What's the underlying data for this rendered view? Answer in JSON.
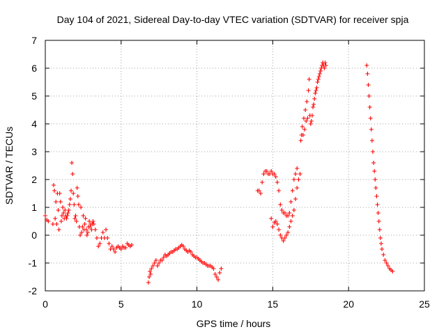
{
  "chart_data": {
    "type": "scatter",
    "title": "Day 104 of 2021, Sidereal Day-to-day VTEC variation (SDTVAR) for receiver spja",
    "xlabel": "GPS time / hours",
    "ylabel": "SDTVAR / TECUs",
    "xlim": [
      0,
      25
    ],
    "ylim": [
      -2,
      7
    ],
    "x_ticks": [
      0,
      5,
      10,
      15,
      20,
      25
    ],
    "y_ticks": [
      -2,
      -1,
      0,
      1,
      2,
      3,
      4,
      5,
      6,
      7
    ],
    "grid": true,
    "marker": "plus",
    "series": [
      {
        "name": "SDTVAR",
        "color": "#ff0000",
        "x": [
          0.0,
          0.1,
          0.2,
          0.5,
          0.55,
          0.6,
          0.65,
          0.7,
          0.75,
          0.8,
          0.85,
          0.9,
          0.95,
          1.0,
          1.05,
          1.1,
          1.15,
          1.2,
          1.25,
          1.3,
          1.35,
          1.4,
          1.45,
          1.5,
          1.55,
          1.6,
          1.65,
          1.7,
          1.75,
          1.8,
          1.85,
          1.9,
          1.95,
          2.0,
          2.05,
          2.1,
          2.15,
          2.2,
          2.25,
          2.3,
          2.35,
          2.4,
          2.45,
          2.5,
          2.55,
          2.6,
          2.65,
          2.7,
          2.75,
          2.8,
          2.85,
          2.9,
          2.95,
          3.0,
          3.05,
          3.1,
          3.15,
          3.2,
          3.3,
          3.4,
          3.5,
          3.6,
          3.7,
          3.8,
          3.9,
          4.0,
          4.1,
          4.2,
          4.3,
          4.4,
          4.5,
          4.6,
          4.7,
          4.8,
          4.9,
          5.0,
          5.1,
          5.2,
          5.3,
          5.4,
          5.5,
          5.6,
          5.7,
          6.8,
          6.85,
          6.9,
          6.95,
          7.0,
          7.1,
          7.2,
          7.3,
          7.4,
          7.5,
          7.6,
          7.7,
          7.8,
          7.9,
          8.0,
          8.1,
          8.2,
          8.3,
          8.4,
          8.5,
          8.6,
          8.7,
          8.8,
          8.9,
          9.0,
          9.1,
          9.2,
          9.3,
          9.4,
          9.5,
          9.6,
          9.7,
          9.8,
          9.9,
          10.0,
          10.1,
          10.2,
          10.3,
          10.4,
          10.5,
          10.6,
          10.7,
          10.8,
          10.9,
          11.0,
          11.1,
          11.2,
          11.3,
          11.4,
          11.5,
          11.6,
          14.0,
          14.1,
          14.2,
          14.3,
          14.4,
          14.5,
          14.6,
          14.7,
          14.8,
          14.9,
          15.0,
          15.1,
          15.2,
          15.3,
          15.4,
          15.5,
          15.6,
          15.7,
          15.8,
          15.9,
          16.0,
          16.1,
          16.2,
          16.3,
          16.4,
          16.5,
          16.6,
          14.9,
          15.0,
          15.1,
          15.2,
          15.3,
          15.4,
          15.5,
          15.6,
          15.7,
          15.8,
          15.9,
          16.0,
          16.1,
          16.2,
          16.3,
          16.4,
          16.5,
          16.6,
          16.7,
          16.8,
          16.85,
          16.9,
          16.95,
          17.0,
          17.05,
          17.1,
          17.15,
          17.2,
          17.25,
          17.3,
          17.35,
          17.4,
          17.45,
          17.5,
          17.55,
          17.6,
          17.65,
          17.7,
          17.75,
          17.8,
          17.85,
          17.9,
          17.95,
          18.0,
          18.05,
          18.1,
          18.15,
          18.2,
          18.25,
          18.3,
          18.35,
          18.4,
          18.45,
          18.5,
          21.2,
          21.25,
          21.3,
          21.35,
          21.4,
          21.45,
          21.5,
          21.55,
          21.6,
          21.65,
          21.7,
          21.75,
          21.8,
          21.85,
          21.9,
          21.95,
          22.0,
          22.05,
          22.1,
          22.15,
          22.2,
          22.3,
          22.4,
          22.5,
          22.6,
          22.7,
          22.8,
          22.9
        ],
        "y": [
          0.7,
          0.55,
          0.5,
          0.4,
          1.8,
          1.6,
          0.6,
          1.2,
          0.4,
          1.5,
          0.9,
          0.2,
          1.5,
          1.2,
          0.5,
          0.7,
          1.0,
          0.8,
          0.6,
          0.9,
          0.7,
          0.6,
          0.7,
          0.8,
          0.9,
          1.1,
          1.3,
          1.6,
          2.6,
          2.2,
          1.5,
          1.1,
          0.6,
          0.7,
          0.5,
          1.7,
          1.4,
          1.1,
          0.3,
          0.0,
          1.0,
          0.1,
          0.3,
          0.7,
          0.2,
          0.4,
          0.6,
          0.2,
          0.0,
          0.1,
          0.3,
          0.5,
          0.3,
          0.4,
          0.2,
          0.4,
          0.5,
          0.4,
          0.2,
          -0.1,
          -0.4,
          -0.3,
          -0.1,
          0.1,
          -0.1,
          0.2,
          -0.1,
          -0.3,
          -0.5,
          -0.4,
          -0.5,
          -0.6,
          -0.45,
          -0.4,
          -0.45,
          -0.5,
          -0.4,
          -0.45,
          -0.45,
          -0.3,
          -0.35,
          -0.4,
          -0.35,
          -1.7,
          -1.5,
          -1.3,
          -1.4,
          -1.2,
          -1.1,
          -1.0,
          -0.9,
          -1.1,
          -1.0,
          -0.9,
          -0.9,
          -0.8,
          -0.7,
          -0.75,
          -0.7,
          -0.65,
          -0.6,
          -0.6,
          -0.55,
          -0.5,
          -0.5,
          -0.45,
          -0.4,
          -0.35,
          -0.4,
          -0.5,
          -0.55,
          -0.6,
          -0.55,
          -0.6,
          -0.7,
          -0.75,
          -0.8,
          -0.8,
          -0.85,
          -0.9,
          -0.95,
          -1.0,
          -1.0,
          -1.05,
          -1.1,
          -1.1,
          -1.1,
          -1.15,
          -1.2,
          -1.4,
          -1.5,
          -1.6,
          -1.35,
          -1.2,
          1.6,
          1.6,
          1.5,
          1.9,
          2.2,
          2.3,
          2.3,
          2.2,
          2.2,
          2.3,
          2.2,
          2.2,
          2.1,
          1.9,
          1.6,
          1.1,
          0.9,
          0.8,
          0.8,
          0.7,
          0.7,
          0.8,
          1.2,
          1.6,
          2.0,
          2.2,
          2.4,
          0.6,
          0.3,
          0.45,
          0.5,
          0.4,
          0.2,
          0.0,
          -0.1,
          -0.2,
          -0.1,
          0.0,
          0.1,
          0.3,
          0.5,
          0.7,
          0.9,
          1.3,
          1.7,
          2.0,
          2.2,
          3.4,
          3.6,
          3.9,
          3.6,
          4.2,
          3.8,
          4.5,
          4.1,
          4.8,
          4.2,
          5.2,
          5.6,
          4.3,
          4.0,
          4.1,
          4.3,
          4.6,
          4.7,
          4.9,
          5.1,
          5.2,
          5.3,
          5.5,
          5.6,
          5.7,
          5.8,
          5.9,
          6.0,
          6.1,
          6.2,
          6.1,
          6.0,
          6.2,
          6.1,
          6.1,
          5.8,
          5.4,
          5.0,
          4.6,
          4.2,
          3.8,
          3.4,
          3.0,
          2.6,
          2.3,
          2.0,
          1.7,
          1.4,
          1.1,
          0.8,
          0.5,
          0.2,
          -0.1,
          -0.3,
          -0.5,
          -0.7,
          -0.9,
          -1.0,
          -1.1,
          -1.2,
          -1.25,
          -1.3
        ]
      }
    ]
  }
}
